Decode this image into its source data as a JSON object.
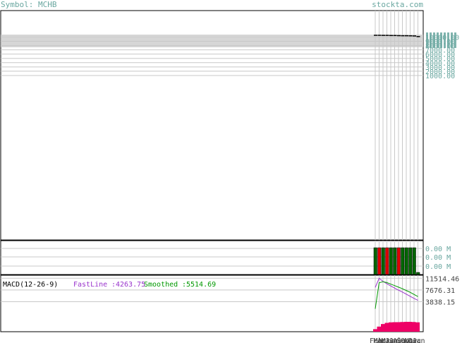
{
  "header": {
    "symbol_label": "Symbol: MCHB",
    "site": "stockta.com"
  },
  "colors": {
    "frame": "#000000",
    "grid": "#c8c8c8",
    "axis_text": "#6aa7a0",
    "up_bar": "#006600",
    "down_bar": "#dd0000",
    "macd_fast": "#9933cc",
    "macd_smoothed": "#009900",
    "histogram": "#ee0066"
  },
  "chart_data": [
    {
      "type": "line",
      "title": "",
      "ylabel": "",
      "y_tick_labels": [
        "10000.00",
        "9000.00",
        "8000.00",
        "7000.00",
        "6000.00",
        "5000.00",
        "4000.00",
        "3000.00",
        "2000.00",
        "1000.00"
      ],
      "y_ticks": [
        10000,
        9000,
        8000,
        7000,
        6000,
        5000,
        4000,
        3000,
        2000,
        1000
      ],
      "grid": true,
      "note_series": "price candles compressed near top of panel",
      "prices": [
        10400,
        10400,
        10380,
        10380,
        10350,
        10350,
        10320,
        10300,
        10300,
        10280,
        10250,
        10100
      ]
    },
    {
      "type": "bar",
      "y_tick_labels": [
        "0.00 M",
        "0.00 M",
        "0.00 M"
      ],
      "volumes": [
        1,
        1,
        1,
        1,
        1,
        1,
        1,
        1,
        1,
        1,
        1,
        0.08
      ],
      "directions": [
        "up",
        "down",
        "up",
        "down",
        "up",
        "up",
        "down",
        "up",
        "up",
        "up",
        "up",
        "up"
      ]
    },
    {
      "type": "line",
      "title": "MACD(12-26-9)",
      "series": [
        {
          "name": "FastLine",
          "last_label": "4263.75",
          "values": [
            8500,
            11514,
            10500,
            9700,
            9000,
            8300,
            7600,
            7000,
            6300,
            5600,
            4900,
            4264
          ]
        },
        {
          "name": "Smoothed",
          "last_label": "5514.69",
          "values": [
            1500,
            10000,
            10400,
            10100,
            9600,
            9100,
            8600,
            8100,
            7500,
            6900,
            6200,
            5515
          ]
        }
      ],
      "histogram": [
        -1500,
        -3000,
        -4500,
        -5200,
        -5500,
        -5600,
        -5600,
        -5700,
        -5800,
        -5800,
        -5700,
        -5500
      ],
      "y_tick_labels": [
        "11514.46",
        "7676.31",
        "3838.15"
      ],
      "y_ticks": [
        11514.46,
        7676.31,
        3838.15
      ],
      "x_tick_labels": [
        "Feb",
        "Mar",
        "Apr",
        "May",
        "Jun",
        "Jul",
        "Aug",
        "Sep",
        "Oct",
        "Nov",
        "Dec",
        "Jan"
      ]
    }
  ]
}
